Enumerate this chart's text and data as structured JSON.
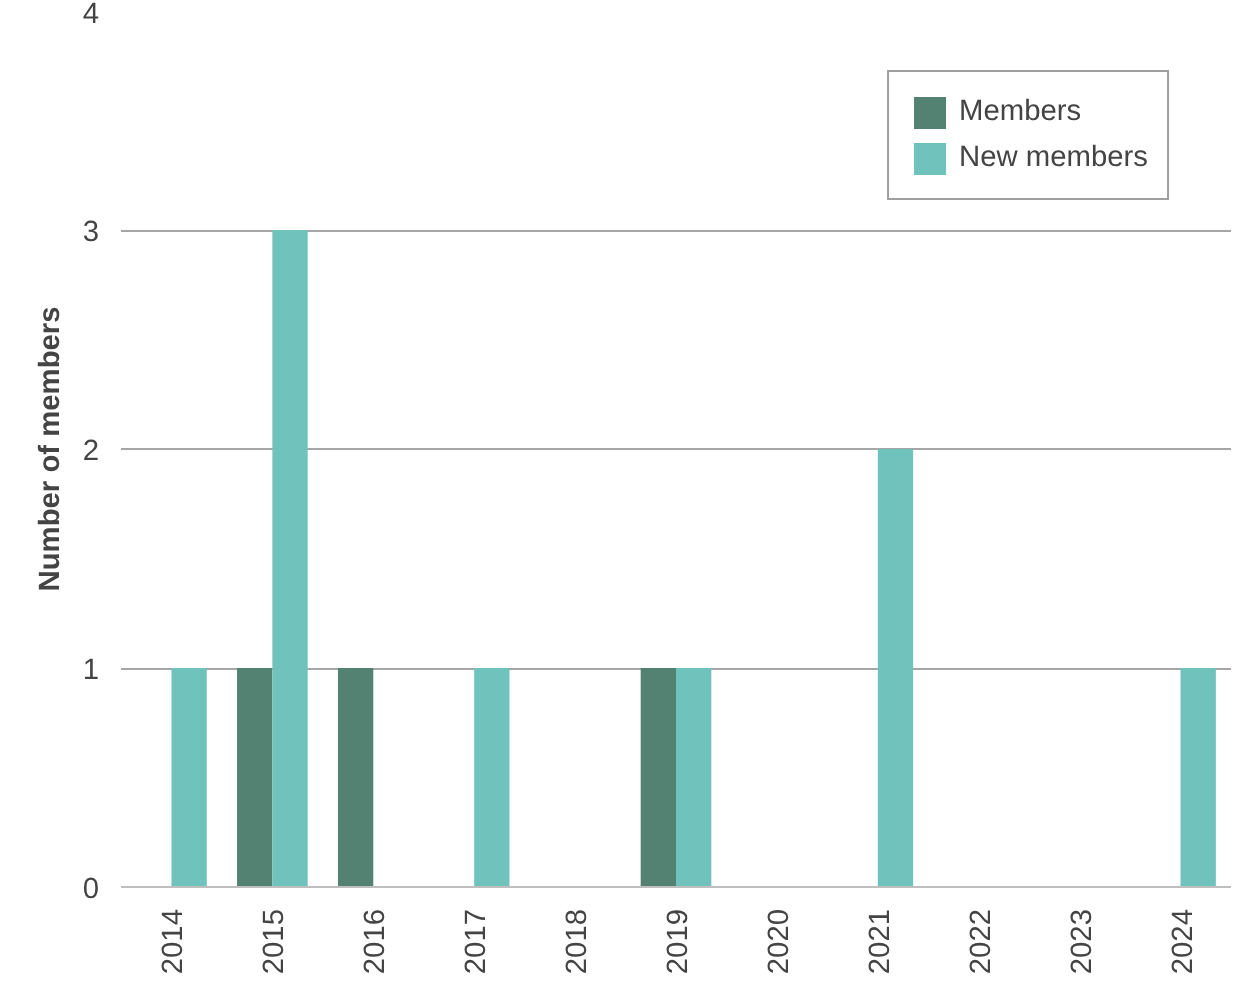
{
  "chart_data": {
    "type": "bar",
    "ylabel": "Number of members",
    "categories": [
      "2014",
      "2015",
      "2016",
      "2017",
      "2018",
      "2019",
      "2020",
      "2021",
      "2022",
      "2023",
      "2024"
    ],
    "series": [
      {
        "name": "Members",
        "color": "#548272",
        "values": [
          0,
          1,
          1,
          0,
          0,
          1,
          0,
          0,
          0,
          0,
          0
        ]
      },
      {
        "name": "New members",
        "color": "#70c3bc",
        "values": [
          1,
          3,
          0,
          1,
          0,
          1,
          0,
          2,
          0,
          0,
          1
        ]
      }
    ],
    "ylim": [
      0,
      4
    ],
    "yticks": [
      0,
      1,
      2,
      3,
      4
    ],
    "grid": "y",
    "legend": "top right"
  }
}
